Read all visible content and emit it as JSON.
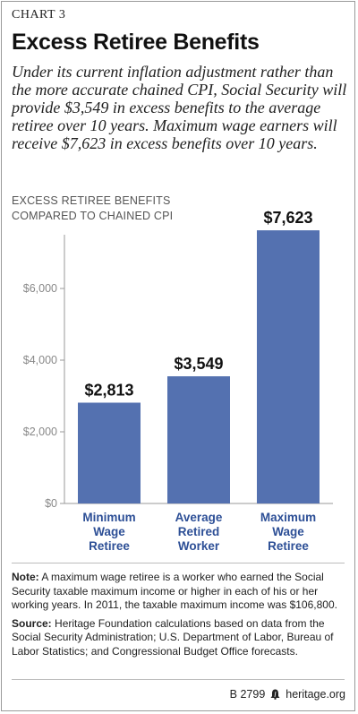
{
  "header": {
    "chart_label": "CHART 3",
    "title": "Excess Retiree Benefits",
    "subtitle": "Under its current inflation adjustment rather than the more accurate chained CPI, Social Security will provide $3,549 in excess benefits to the average retiree over 10 years. Maximum wage earners will receive $7,623 in excess benefits over 10 years."
  },
  "chart_data": {
    "type": "bar",
    "title": "",
    "ylabel": "EXCESS RETIREE BENEFITS COMPARED TO CHAINED CPI",
    "categories": [
      [
        "Minimum",
        "Wage",
        "Retiree"
      ],
      [
        "Average",
        "Retired",
        "Worker"
      ],
      [
        "Maximum",
        "Wage",
        "Retiree"
      ]
    ],
    "values": [
      2813,
      3549,
      7623
    ],
    "value_labels": [
      "$2,813",
      "$3,549",
      "$7,623"
    ],
    "yticks": [
      0,
      2000,
      4000,
      6000
    ],
    "ytick_labels": [
      "$0",
      "$2,000",
      "$4,000",
      "$6,000"
    ],
    "ylim": [
      0,
      8000
    ],
    "grid": false,
    "legend": "none",
    "bar_color": "#5471b0",
    "category_color": "#2d4f96"
  },
  "notes": {
    "note_label": "Note:",
    "note_text": " A maximum wage retiree is a worker who earned the Social Security taxable maximum income or higher in each of his or her working years. In 2011, the taxable maximum income was $106,800.",
    "source_label": "Source:",
    "source_text": " Heritage Foundation calculations based on data from the Social Security Administration; U.S. Department of Labor, Bureau of Labor Statistics; and Congressional Budget Office forecasts."
  },
  "footer": {
    "code": "B 2799",
    "site": "heritage.org",
    "icon": "liberty-bell-icon"
  }
}
